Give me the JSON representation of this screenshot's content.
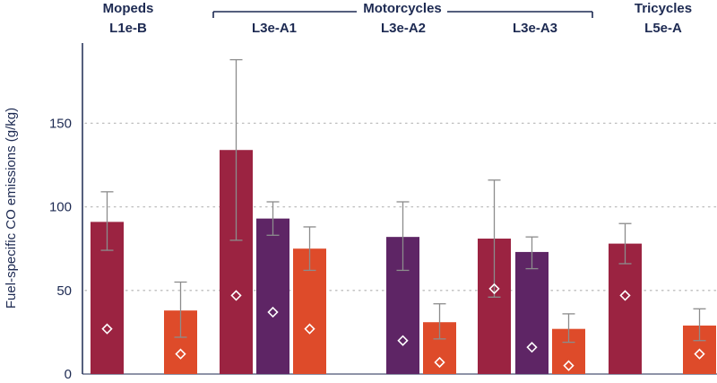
{
  "chart_data": {
    "type": "bar",
    "ylabel": "Fuel-specific CO emissions (g/kg)",
    "ylim": [
      0,
      200
    ],
    "yticks": [
      0,
      50,
      100,
      150
    ],
    "grid": "horizontal dotted",
    "colors": {
      "red": "#9b2341",
      "purple": "#5e2565",
      "orange": "#de4b2a",
      "error": "#8c8c8c",
      "axis": "#1d2a52"
    },
    "groups": [
      {
        "name": "Mopeds",
        "code": "L1e-B",
        "bars": [
          {
            "color": "red",
            "value": 91,
            "err_low": 74,
            "err_high": 109,
            "marker": 27
          },
          {
            "color": "orange",
            "value": 38,
            "err_low": 22,
            "err_high": 55,
            "marker": 12
          }
        ]
      },
      {
        "name": "",
        "code": "L3e-A1",
        "bars": [
          {
            "color": "red",
            "value": 134,
            "err_low": 80,
            "err_high": 188,
            "marker": 47
          },
          {
            "color": "purple",
            "value": 93,
            "err_low": 83,
            "err_high": 103,
            "marker": 37
          },
          {
            "color": "orange",
            "value": 75,
            "err_low": 62,
            "err_high": 88,
            "marker": 27
          }
        ]
      },
      {
        "name": "",
        "code": "L3e-A2",
        "bars": [
          {
            "color": "purple",
            "value": 82,
            "err_low": 62,
            "err_high": 103,
            "marker": 20
          },
          {
            "color": "orange",
            "value": 31,
            "err_low": 21,
            "err_high": 42,
            "marker": 7
          }
        ]
      },
      {
        "name": "",
        "code": "L3e-A3",
        "bars": [
          {
            "color": "red",
            "value": 81,
            "err_low": 46,
            "err_high": 116,
            "marker": 51
          },
          {
            "color": "purple",
            "value": 73,
            "err_low": 63,
            "err_high": 82,
            "marker": 16
          },
          {
            "color": "orange",
            "value": 27,
            "err_low": 19,
            "err_high": 36,
            "marker": 5
          }
        ]
      },
      {
        "name": "Tricycles",
        "code": "L5e-A",
        "bars": [
          {
            "color": "red",
            "value": 78,
            "err_low": 66,
            "err_high": 90,
            "marker": 47
          },
          {
            "color": "orange",
            "value": 29,
            "err_low": 20,
            "err_high": 39,
            "marker": 12
          }
        ]
      }
    ],
    "bracket_label": "Motorcycles"
  }
}
